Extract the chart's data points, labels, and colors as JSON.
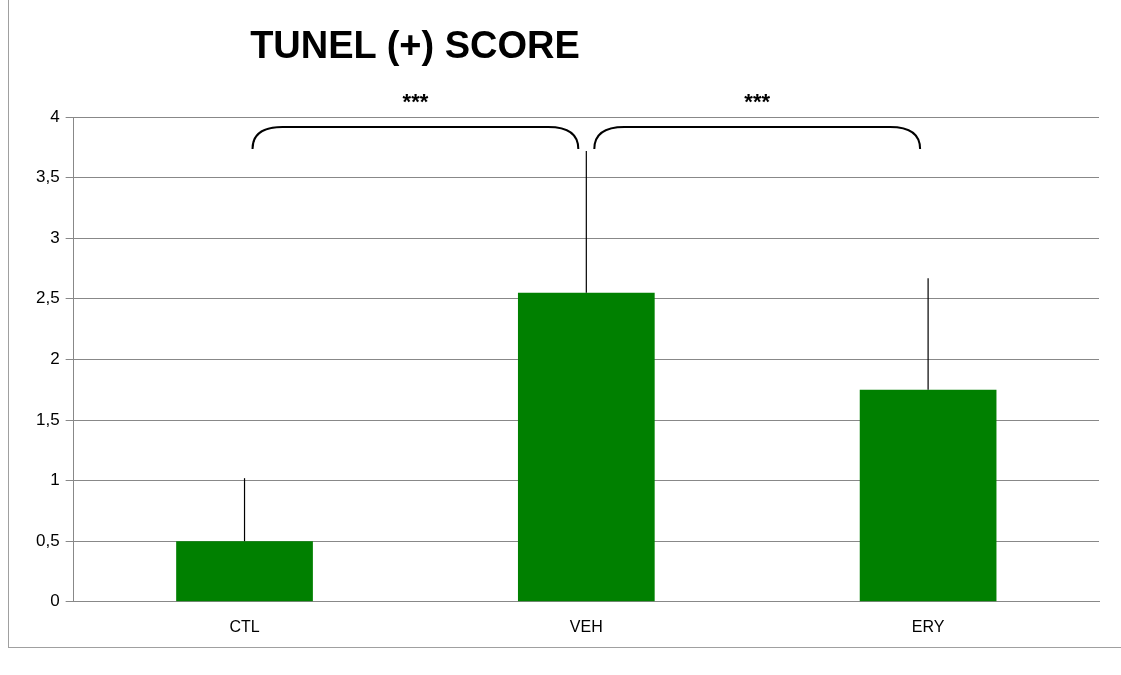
{
  "chart_data": {
    "type": "bar",
    "title": "TUNEL (+) SCORE",
    "categories": [
      "CTL",
      "VEH",
      "ERY"
    ],
    "values": [
      0.5,
      2.55,
      1.75
    ],
    "errors": [
      [
        0.5,
        1.02
      ],
      [
        2.55,
        3.72
      ],
      [
        1.75,
        2.67
      ]
    ],
    "color": "#008000",
    "ylim": [
      0,
      4
    ],
    "yticks": [
      0,
      {
        "value": 0.5,
        "label": "0,5"
      },
      1,
      {
        "value": 1.5,
        "label": "1,5"
      },
      2,
      {
        "value": 2.5,
        "label": "2,5"
      },
      3,
      {
        "value": 3.5,
        "label": "3,5"
      },
      4
    ],
    "grid": "y",
    "legend": false,
    "annotations": [
      "***",
      "***"
    ]
  }
}
